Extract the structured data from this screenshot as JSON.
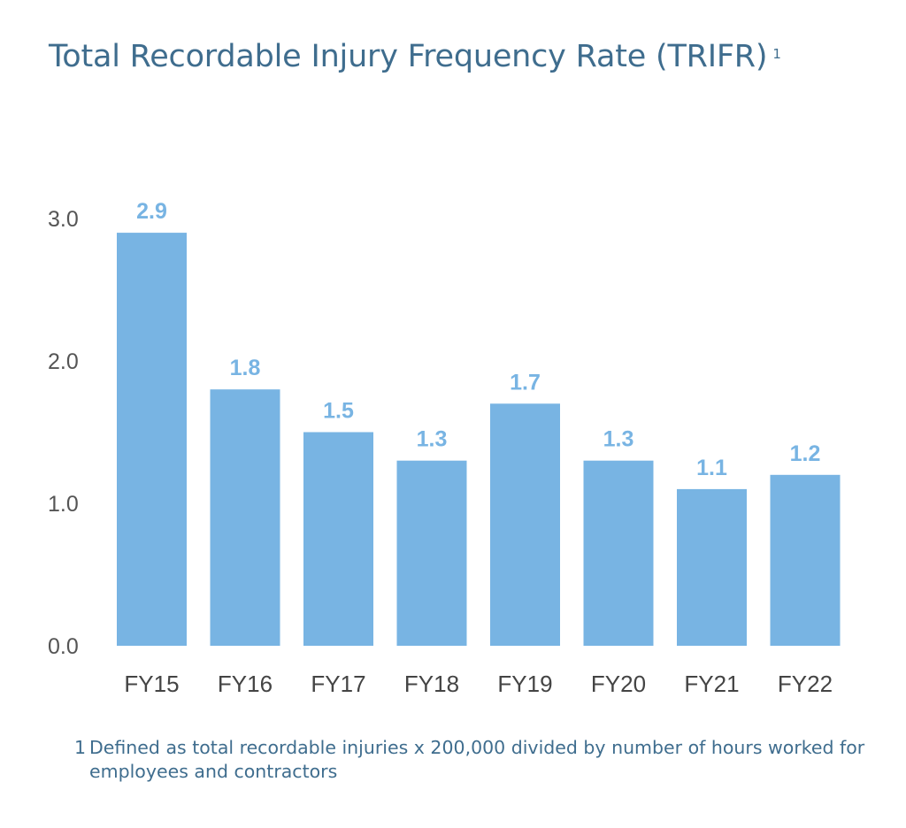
{
  "title": "Total Recordable Injury Frequency Rate (TRIFR)",
  "title_note_marker": "1",
  "footnote": {
    "marker": "1",
    "text": "Defined as total recordable injuries x 200,000 divided by number of hours worked for employees and contractors"
  },
  "chart_data": {
    "type": "bar",
    "title": "Total Recordable Injury Frequency Rate (TRIFR)",
    "categories": [
      "FY15",
      "FY16",
      "FY17",
      "FY18",
      "FY19",
      "FY20",
      "FY21",
      "FY22"
    ],
    "values": [
      2.9,
      1.8,
      1.5,
      1.3,
      1.7,
      1.3,
      1.1,
      1.2
    ],
    "data_labels": [
      "2.9",
      "1.8",
      "1.5",
      "1.3",
      "1.7",
      "1.3",
      "1.1",
      "1.2"
    ],
    "yticks": [
      "0.0",
      "1.0",
      "2.0",
      "3.0"
    ],
    "ytick_values": [
      0,
      1,
      2,
      3
    ],
    "ylim": [
      0,
      3
    ],
    "xlabel": "",
    "ylabel": "",
    "grid": false,
    "legend": "none",
    "bar_color": "#78b4e3",
    "title_color": "#3f6d8e"
  }
}
